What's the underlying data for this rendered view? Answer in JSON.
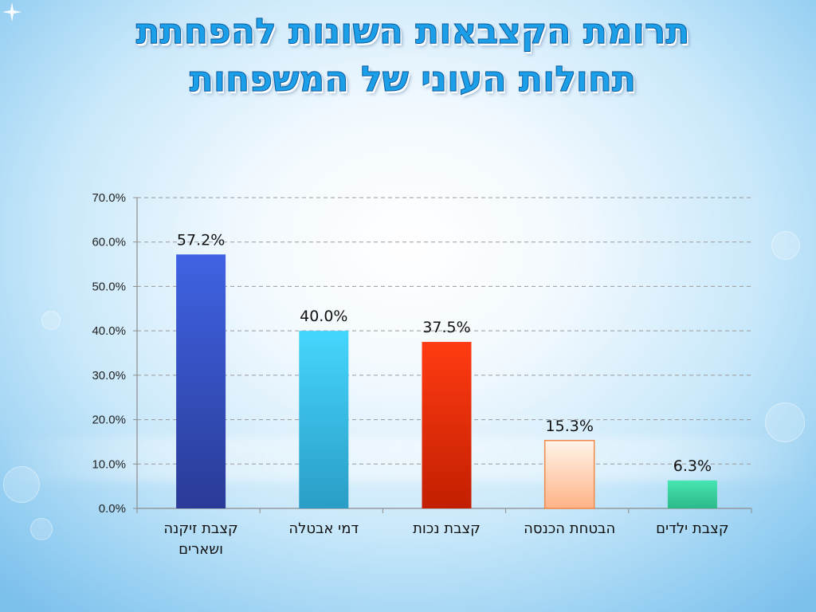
{
  "chart_data": {
    "type": "bar",
    "title": [
      "תרומת הקצבאות השונות להפחתת",
      "תחולות העוני של המשפחות"
    ],
    "title_color": "#1a9fe8",
    "categories": [
      "קצבת זיקנה ושארים",
      "דמי אבטלה",
      "קצבת נכות",
      "הבטחת הכנסה",
      "קצבת ילדים"
    ],
    "values": [
      57.2,
      40.0,
      37.5,
      15.3,
      6.3
    ],
    "data_labels": [
      "57.2%",
      "40.0%",
      "37.5%",
      "15.3%",
      "6.3%"
    ],
    "ylim": [
      0,
      70
    ],
    "yticks": [
      0,
      10,
      20,
      30,
      40,
      50,
      60,
      70
    ],
    "ytick_labels": [
      "0.0%",
      "10.0%",
      "20.0%",
      "30.0%",
      "40.0%",
      "50.0%",
      "60.0%",
      "70.0%"
    ],
    "grid": true,
    "legend": false,
    "bar_colors": [
      {
        "top": "#3f63e3",
        "bottom": "#2a3b97",
        "stroke": null
      },
      {
        "top": "#46d6fd",
        "bottom": "#2a9dc6",
        "stroke": null
      },
      {
        "top": "#ff3b12",
        "bottom": "#c21f00",
        "stroke": null
      },
      {
        "top": "#fff4ea",
        "bottom": "#ffb386",
        "stroke": "#f08a4b"
      },
      {
        "top": "#46e6b2",
        "bottom": "#2db989",
        "stroke": null
      }
    ]
  }
}
